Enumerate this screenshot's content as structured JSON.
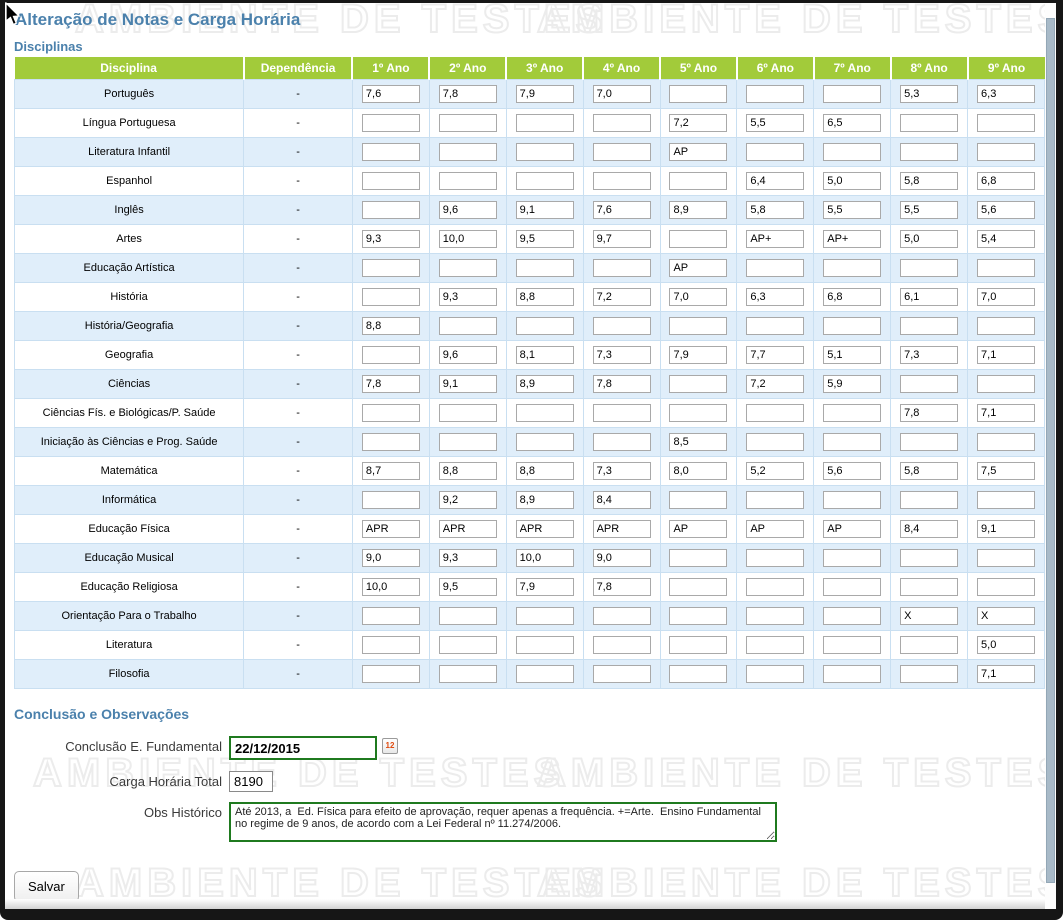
{
  "window": {
    "title": "Alteração de Notas e Carga Horária"
  },
  "watermark": {
    "text": "AMBIENTE DE TESTES"
  },
  "sections": {
    "disciplinas": "Disciplinas",
    "conclusao": "Conclusão e Observações"
  },
  "table": {
    "headers": [
      "Disciplina",
      "Dependência",
      "1º Ano",
      "2º Ano",
      "3º Ano",
      "4º Ano",
      "5º Ano",
      "6º Ano",
      "7º Ano",
      "8º Ano",
      "9º Ano"
    ],
    "rows": [
      {
        "name": "Português",
        "dependencia": "-",
        "grades": [
          "7,6",
          "7,8",
          "7,9",
          "7,0",
          "",
          "",
          "",
          "5,3",
          "6,3"
        ]
      },
      {
        "name": "Língua Portuguesa",
        "dependencia": "-",
        "grades": [
          "",
          "",
          "",
          "",
          "7,2",
          "5,5",
          "6,5",
          "",
          ""
        ]
      },
      {
        "name": "Literatura Infantil",
        "dependencia": "-",
        "grades": [
          "",
          "",
          "",
          "",
          "AP",
          "",
          "",
          "",
          ""
        ]
      },
      {
        "name": "Espanhol",
        "dependencia": "-",
        "grades": [
          "",
          "",
          "",
          "",
          "",
          "6,4",
          "5,0",
          "5,8",
          "6,8"
        ]
      },
      {
        "name": "Inglês",
        "dependencia": "-",
        "grades": [
          "",
          "9,6",
          "9,1",
          "7,6",
          "8,9",
          "5,8",
          "5,5",
          "5,5",
          "5,6"
        ]
      },
      {
        "name": "Artes",
        "dependencia": "-",
        "grades": [
          "9,3",
          "10,0",
          "9,5",
          "9,7",
          "",
          "AP+",
          "AP+",
          "5,0",
          "5,4"
        ]
      },
      {
        "name": "Educação Artística",
        "dependencia": "-",
        "grades": [
          "",
          "",
          "",
          "",
          "AP",
          "",
          "",
          "",
          ""
        ]
      },
      {
        "name": "História",
        "dependencia": "-",
        "grades": [
          "",
          "9,3",
          "8,8",
          "7,2",
          "7,0",
          "6,3",
          "6,8",
          "6,1",
          "7,0"
        ]
      },
      {
        "name": "História/Geografia",
        "dependencia": "-",
        "grades": [
          "8,8",
          "",
          "",
          "",
          "",
          "",
          "",
          "",
          ""
        ]
      },
      {
        "name": "Geografia",
        "dependencia": "-",
        "grades": [
          "",
          "9,6",
          "8,1",
          "7,3",
          "7,9",
          "7,7",
          "5,1",
          "7,3",
          "7,1"
        ]
      },
      {
        "name": "Ciências",
        "dependencia": "-",
        "grades": [
          "7,8",
          "9,1",
          "8,9",
          "7,8",
          "",
          "7,2",
          "5,9",
          "",
          ""
        ]
      },
      {
        "name": "Ciências Fís. e Biológicas/P. Saúde",
        "dependencia": "-",
        "grades": [
          "",
          "",
          "",
          "",
          "",
          "",
          "",
          "7,8",
          "7,1"
        ]
      },
      {
        "name": "Iniciação às Ciências e Prog. Saúde",
        "dependencia": "-",
        "grades": [
          "",
          "",
          "",
          "",
          "8,5",
          "",
          "",
          "",
          ""
        ]
      },
      {
        "name": "Matemática",
        "dependencia": "-",
        "grades": [
          "8,7",
          "8,8",
          "8,8",
          "7,3",
          "8,0",
          "5,2",
          "5,6",
          "5,8",
          "7,5"
        ]
      },
      {
        "name": "Informática",
        "dependencia": "-",
        "grades": [
          "",
          "9,2",
          "8,9",
          "8,4",
          "",
          "",
          "",
          "",
          ""
        ]
      },
      {
        "name": "Educação Física",
        "dependencia": "-",
        "grades": [
          "APR",
          "APR",
          "APR",
          "APR",
          "AP",
          "AP",
          "AP",
          "8,4",
          "9,1"
        ]
      },
      {
        "name": "Educação Musical",
        "dependencia": "-",
        "grades": [
          "9,0",
          "9,3",
          "10,0",
          "9,0",
          "",
          "",
          "",
          "",
          ""
        ]
      },
      {
        "name": "Educação Religiosa",
        "dependencia": "-",
        "grades": [
          "10,0",
          "9,5",
          "7,9",
          "7,8",
          "",
          "",
          "",
          "",
          ""
        ]
      },
      {
        "name": "Orientação Para o Trabalho",
        "dependencia": "-",
        "grades": [
          "",
          "",
          "",
          "",
          "",
          "",
          "",
          "X",
          "X"
        ]
      },
      {
        "name": "Literatura",
        "dependencia": "-",
        "grades": [
          "",
          "",
          "",
          "",
          "",
          "",
          "",
          "",
          "5,0"
        ]
      },
      {
        "name": "Filosofia",
        "dependencia": "-",
        "grades": [
          "",
          "",
          "",
          "",
          "",
          "",
          "",
          "",
          "7,1"
        ]
      }
    ]
  },
  "conclusion": {
    "date_label": "Conclusão E. Fundamental",
    "date_value": "22/12/2015",
    "carga_label": "Carga Horária Total",
    "carga_value": "8190",
    "obs_label": "Obs Histórico",
    "obs_value": "Até 2013, a  Ed. Física para efeito de aprovação, requer apenas a frequência. +=Arte.  Ensino Fundamental no regime de 9 anos, de acordo com a Lei Federal nº 11.274/2006."
  },
  "buttons": {
    "save": "Salvar"
  },
  "icons": {
    "date_picker": "calendar-icon",
    "pointer": "mouse-cursor-icon",
    "calendar_day": "12"
  },
  "colors": {
    "header_green": "#a2cb3a",
    "row_alt_blue": "#e0eefa",
    "title_blue": "#4b81ac",
    "field_green_border": "#1f7a1f",
    "scroll_thumb": "#a8bac8"
  }
}
